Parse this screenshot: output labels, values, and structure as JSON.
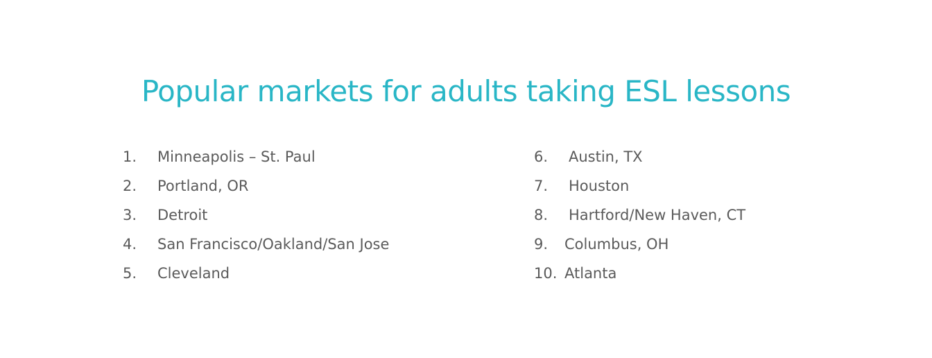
{
  "title": "Popular markets for adults taking ESL lessons",
  "colors": {
    "title": "#29b6c6",
    "text": "#5a5a5a"
  },
  "markets_left": [
    {
      "num": "1.",
      "name": "Minneapolis – St. Paul"
    },
    {
      "num": "2.",
      "name": "Portland, OR"
    },
    {
      "num": "3.",
      "name": "Detroit"
    },
    {
      "num": "4.",
      "name": "San Francisco/Oakland/San Jose"
    },
    {
      "num": "5.",
      "name": "Cleveland"
    }
  ],
  "markets_right": [
    {
      "num": "6.",
      "name": "Austin, TX"
    },
    {
      "num": "7.",
      "name": "Houston"
    },
    {
      "num": "8.",
      "name": "Hartford/New Haven, CT"
    },
    {
      "num": "9.",
      "name": "Columbus, OH"
    },
    {
      "num": "10.",
      "name": "Atlanta"
    }
  ]
}
